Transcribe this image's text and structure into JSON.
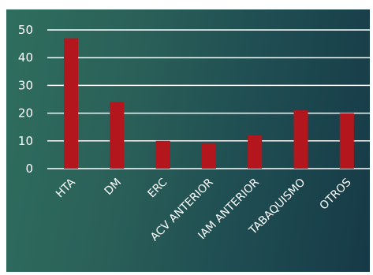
{
  "chart_data": {
    "type": "bar",
    "categories": [
      "HTA",
      "DM",
      "ERC",
      "ACV ANTERIOR",
      "IAM ANTERIOR",
      "TABAQUISMO",
      "OTROS"
    ],
    "values": [
      47,
      24,
      10,
      9,
      12,
      21,
      20
    ],
    "ylim": [
      0,
      50
    ],
    "yticks": [
      0,
      10,
      20,
      30,
      40,
      50
    ],
    "grid": true,
    "colors": {
      "bar": "#b3161c",
      "grid": "#ffffff",
      "text": "#ffffff"
    }
  }
}
